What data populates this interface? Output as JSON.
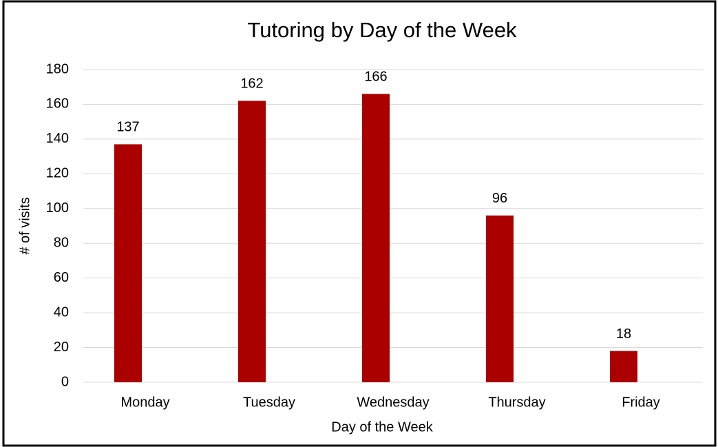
{
  "chart_data": {
    "type": "bar",
    "title": "Tutoring by Day of the Week",
    "x_label": "Day of the Week",
    "y_label": "# of visits",
    "categories": [
      "Monday",
      "Tuesday",
      "Wednesday",
      "Thursday",
      "Friday"
    ],
    "values": [
      137,
      162,
      166,
      96,
      18
    ],
    "color": "#aa0000",
    "ylim": [
      0,
      180
    ],
    "yticks": [
      0,
      20,
      40,
      60,
      80,
      100,
      120,
      140,
      160,
      180
    ],
    "grid": true
  }
}
